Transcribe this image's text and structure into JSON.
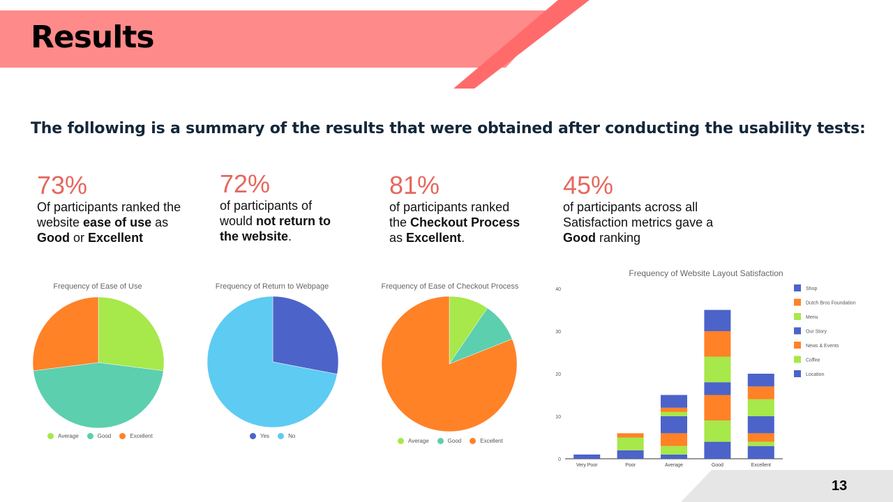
{
  "slide": {
    "title": "Results",
    "subtitle": "The following is a summary of the results that were obtained after conducting the usability tests:",
    "page_number": "13",
    "colors": {
      "banner": "#ff8a8a",
      "accent_stripe": "#ff6b6b",
      "stat_red": "#e5675e",
      "footer_gray": "#e6e6e6"
    }
  },
  "stats": [
    {
      "pct": "73%",
      "parts": [
        {
          "t": "Of participants ranked the website "
        },
        {
          "t": "ease of use",
          "b": true
        },
        {
          "t": " as "
        },
        {
          "t": "Good",
          "b": true
        },
        {
          "t": " or "
        },
        {
          "t": "Excellent",
          "b": true
        }
      ]
    },
    {
      "pct": "72%",
      "parts": [
        {
          "t": "of participants of would "
        },
        {
          "t": "not return to the website",
          "b": true
        },
        {
          "t": "."
        }
      ]
    },
    {
      "pct": "81%",
      "parts": [
        {
          "t": "of participants ranked the "
        },
        {
          "t": "Checkout Process",
          "b": true
        },
        {
          "t": " as "
        },
        {
          "t": "Excellent",
          "b": true
        },
        {
          "t": "."
        }
      ]
    },
    {
      "pct": "45%",
      "parts": [
        {
          "t": "of participants across all Satisfaction metrics gave a "
        },
        {
          "t": "Good",
          "b": true
        },
        {
          "t": " ranking"
        }
      ]
    }
  ],
  "chart_data": [
    {
      "type": "pie",
      "title": "Frequency of Ease of Use",
      "slices": [
        {
          "name": "Average",
          "value": 27,
          "color": "#a7e84a"
        },
        {
          "name": "Good",
          "value": 46,
          "color": "#5ccfae"
        },
        {
          "name": "Excellent",
          "value": 27,
          "color": "#ff8227"
        }
      ],
      "legend": "bottom"
    },
    {
      "type": "pie",
      "title": "Frequency of Return to Webpage",
      "slices": [
        {
          "name": "Yes",
          "value": 28,
          "color": "#4c63c9"
        },
        {
          "name": "No",
          "value": 72,
          "color": "#5ecbf2"
        }
      ],
      "legend": "bottom"
    },
    {
      "type": "pie",
      "title": "Frequency of Ease of Checkout Process",
      "slices": [
        {
          "name": "Average",
          "value": 9.5,
          "color": "#a7e84a"
        },
        {
          "name": "Good",
          "value": 9.5,
          "color": "#5ccfae"
        },
        {
          "name": "Excellent",
          "value": 81,
          "color": "#ff8227"
        }
      ],
      "legend": "bottom"
    },
    {
      "type": "bar",
      "stacked": true,
      "title": "Frequency of Website Layout Satisfaction",
      "categories": [
        "Very Poor",
        "Poor",
        "Average",
        "Good",
        "Excellent"
      ],
      "ylim": [
        0,
        40
      ],
      "yticks": [
        0,
        10,
        20,
        30,
        40
      ],
      "grid": false,
      "legend": "right",
      "series": [
        {
          "name": "Location",
          "color": "#4c63c9",
          "values": [
            0,
            2,
            1,
            4,
            3
          ]
        },
        {
          "name": "Coffee",
          "color": "#a7e84a",
          "values": [
            0,
            3,
            2,
            5,
            1
          ]
        },
        {
          "name": "News & Events",
          "color": "#ff8227",
          "values": [
            0,
            1,
            3,
            6,
            2
          ]
        },
        {
          "name": "Our Story",
          "color": "#4c63c9",
          "values": [
            1,
            0,
            4,
            3,
            4
          ]
        },
        {
          "name": "Menu",
          "color": "#a7e84a",
          "values": [
            0,
            0,
            1,
            6,
            4
          ]
        },
        {
          "name": "Dutch Bros Foundation",
          "color": "#ff8227",
          "values": [
            0,
            0,
            1,
            6,
            3
          ]
        },
        {
          "name": "Shop",
          "color": "#4c63c9",
          "values": [
            0,
            0,
            3,
            5,
            3
          ]
        }
      ],
      "legend_order": [
        "Shop",
        "Dutch Bros Foundation",
        "Menu",
        "Our Story",
        "News & Events",
        "Coffee",
        "Location"
      ]
    }
  ]
}
